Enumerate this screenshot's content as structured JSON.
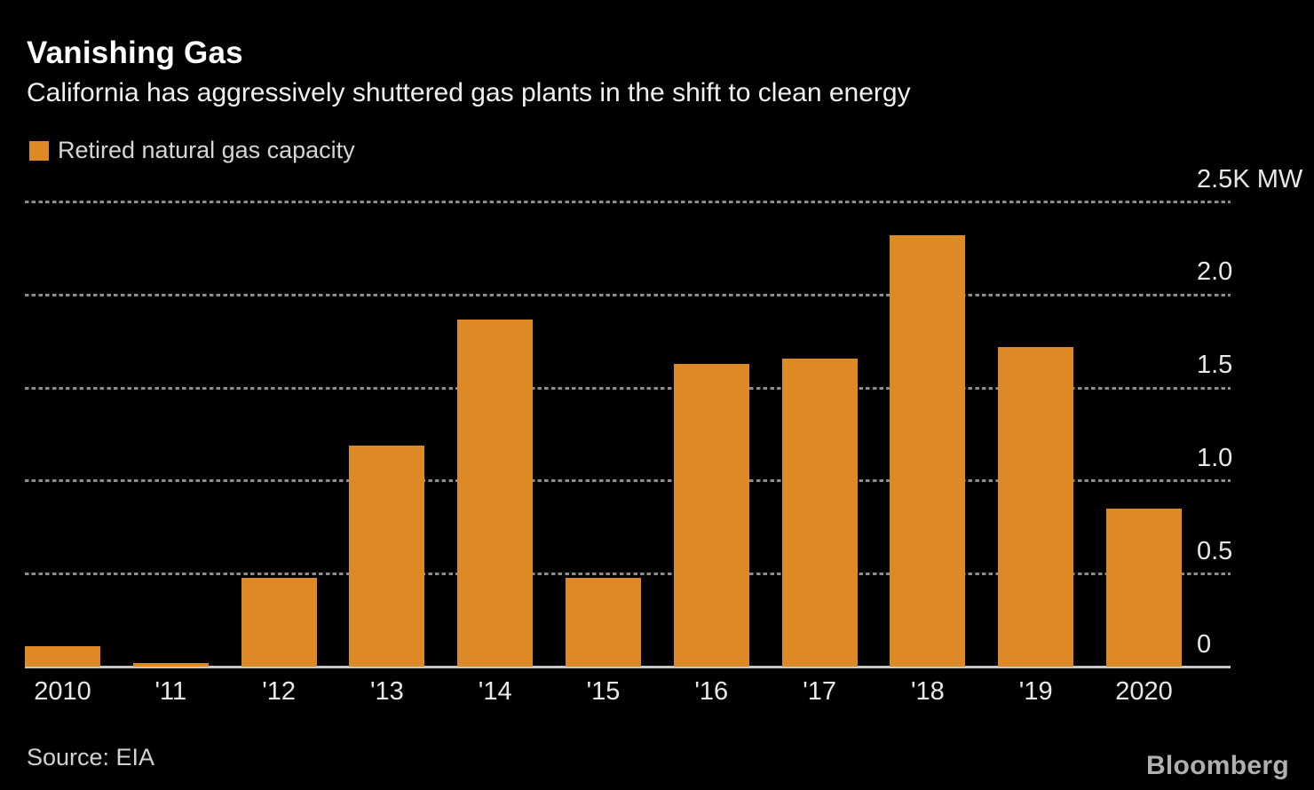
{
  "header": {
    "title": "Vanishing Gas",
    "subtitle": "California has aggressively shuttered gas plants in the shift to clean energy"
  },
  "legend": {
    "label": "Retired natural gas capacity",
    "swatch_color": "#dd8a26"
  },
  "chart_data": {
    "type": "bar",
    "title": "Vanishing Gas",
    "subtitle": "California has aggressively shuttered gas plants in the shift to clean energy",
    "series_name": "Retired natural gas capacity",
    "unit": "K MW",
    "categories": [
      "2010",
      "'11",
      "'12",
      "'13",
      "'14",
      "'15",
      "'16",
      "'17",
      "'18",
      "'19",
      "2020"
    ],
    "values": [
      0.11,
      0.02,
      0.48,
      1.19,
      1.87,
      0.48,
      1.63,
      1.66,
      2.32,
      1.72,
      0.85
    ],
    "xlabel": "",
    "ylabel": "",
    "ylim": [
      0,
      2.5
    ],
    "y_ticks": [
      {
        "value": 2.5,
        "label": "2.5K MW"
      },
      {
        "value": 2.0,
        "label": "2.0"
      },
      {
        "value": 1.5,
        "label": "1.5"
      },
      {
        "value": 1.0,
        "label": "1.0"
      },
      {
        "value": 0.5,
        "label": "0.5"
      },
      {
        "value": 0,
        "label": "0"
      }
    ],
    "bar_color": "#dd8a26",
    "grid": "horizontal dashed, y-axis labels on right, zero line solid",
    "legend_position": "top-left"
  },
  "footer": {
    "source": "Source: EIA",
    "brand": "Bloomberg"
  }
}
